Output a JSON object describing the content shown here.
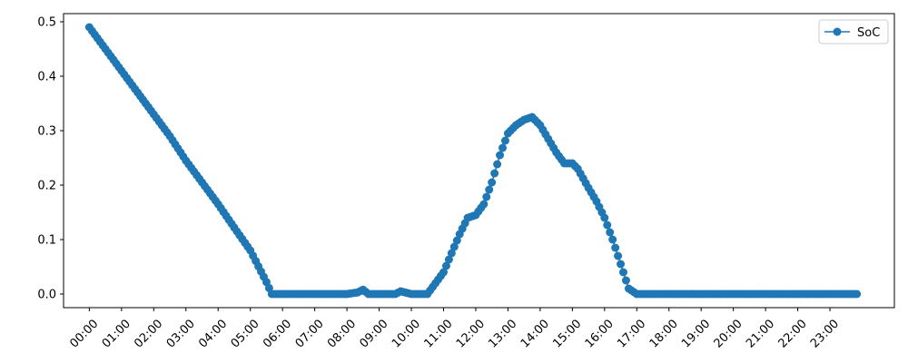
{
  "chart_data": {
    "type": "line",
    "title": "",
    "xlabel": "",
    "ylabel": "",
    "ylim": [
      -0.025,
      0.515
    ],
    "xlim_hours": [
      -0.8,
      25.0
    ],
    "yticks": [
      0.0,
      0.1,
      0.2,
      0.3,
      0.4,
      0.5
    ],
    "ytick_labels": [
      "0.0",
      "0.1",
      "0.2",
      "0.3",
      "0.4",
      "0.5"
    ],
    "xticks": [
      "00:00",
      "01:00",
      "02:00",
      "03:00",
      "04:00",
      "05:00",
      "06:00",
      "07:00",
      "08:00",
      "09:00",
      "10:00",
      "11:00",
      "12:00",
      "13:00",
      "14:00",
      "15:00",
      "16:00",
      "17:00",
      "18:00",
      "19:00",
      "20:00",
      "21:00",
      "22:00",
      "23:00"
    ],
    "legend": {
      "position": "top-right",
      "entries": [
        "SoC"
      ]
    },
    "grid": false,
    "series": [
      {
        "name": "SoC",
        "color": "#1f77b4",
        "marker": "circle",
        "x": [
          "00:00",
          "00:30",
          "01:00",
          "01:30",
          "02:00",
          "02:30",
          "03:00",
          "03:30",
          "04:00",
          "04:30",
          "05:00",
          "05:30",
          "05:40",
          "06:00",
          "07:00",
          "08:00",
          "08:20",
          "08:30",
          "08:40",
          "09:00",
          "09:30",
          "09:40",
          "10:00",
          "10:20",
          "10:30",
          "11:00",
          "11:30",
          "11:45",
          "12:00",
          "12:15",
          "12:30",
          "12:45",
          "13:00",
          "13:15",
          "13:30",
          "13:45",
          "14:00",
          "14:15",
          "14:30",
          "14:45",
          "15:00",
          "15:10",
          "15:30",
          "15:45",
          "16:00",
          "16:15",
          "16:30",
          "16:45",
          "17:00",
          "18:00",
          "19:00",
          "20:00",
          "21:00",
          "22:00",
          "23:00",
          "23:50"
        ],
        "y": [
          0.49,
          0.45,
          0.41,
          0.37,
          0.33,
          0.29,
          0.245,
          0.205,
          0.165,
          0.122,
          0.08,
          0.022,
          0.0,
          0.0,
          0.0,
          0.0,
          0.003,
          0.008,
          0.0,
          0.0,
          0.0,
          0.005,
          0.0,
          0.0,
          0.0,
          0.04,
          0.11,
          0.14,
          0.145,
          0.165,
          0.205,
          0.255,
          0.295,
          0.31,
          0.32,
          0.325,
          0.31,
          0.285,
          0.26,
          0.24,
          0.24,
          0.23,
          0.195,
          0.17,
          0.14,
          0.1,
          0.055,
          0.01,
          0.0,
          0.0,
          0.0,
          0.0,
          0.0,
          0.0,
          0.0,
          0.0
        ]
      }
    ]
  }
}
